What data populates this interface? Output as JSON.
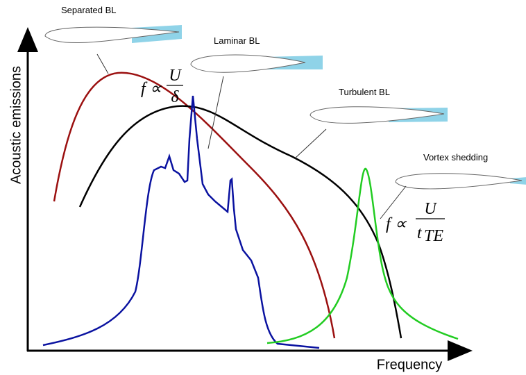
{
  "labels": {
    "separated": "Separated BL",
    "laminar": "Laminar BL",
    "turbulent": "Turbulent BL",
    "vortex": "Vortex shedding"
  },
  "axes": {
    "y": "Acoustic emissions",
    "x": "Frequency"
  },
  "formula_1": {
    "lhs": "f ∝",
    "numerator": "U",
    "denominator": "δ"
  },
  "formula_2": {
    "lhs": "f ∝",
    "numerator": "U",
    "denominator": "t",
    "subscript": "TE"
  }
}
